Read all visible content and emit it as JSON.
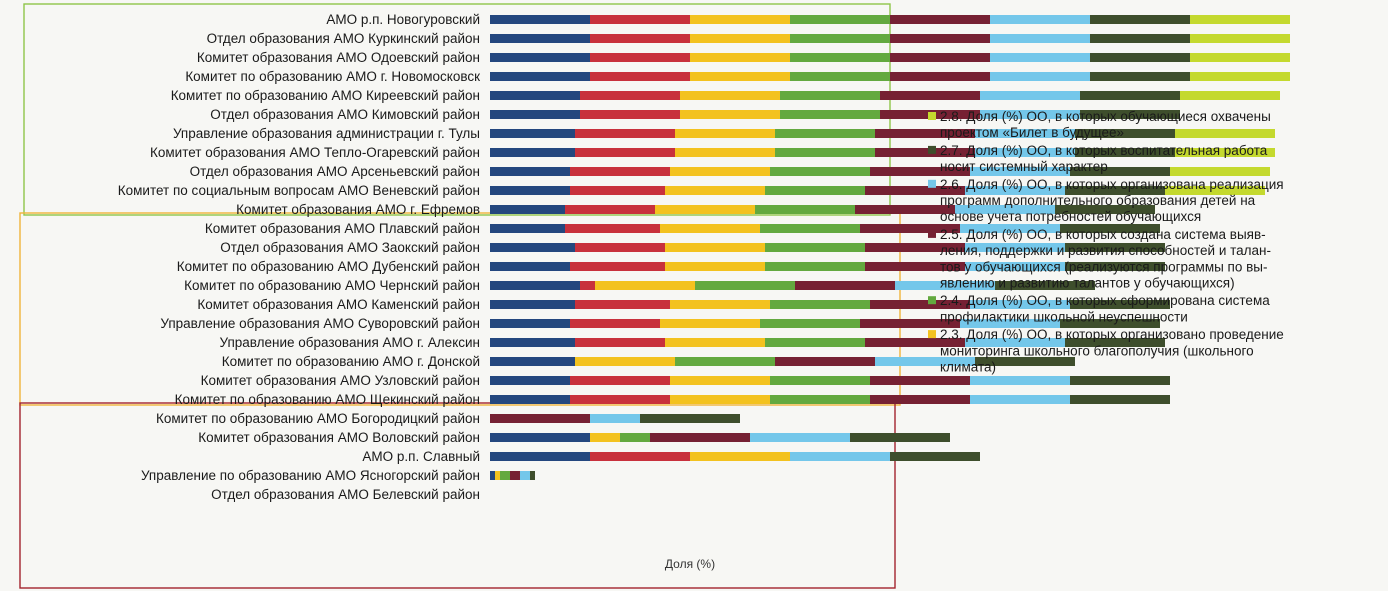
{
  "chart_data": {
    "type": "bar",
    "orientation": "horizontal",
    "stacked": true,
    "xlabel": "Доля (%)",
    "grid": false,
    "legend_position": "right",
    "categories": [
      "АМО р.п. Новогуровский",
      "Отдел образования АМО Куркинский район",
      "Комитет образования АМО Одоевский район",
      "Комитет по образованию АМО г. Новомосковск",
      "Комитет по образованию АМО Киреевский район",
      "Отдел образования АМО Кимовский район",
      "Управление образования администрации г. Тулы",
      "Комитет образования АМО Тепло-Огаревский район",
      "Отдел образования АМО Арсеньевский район",
      "Комитет по социальным вопросам АМО Веневский район",
      "Комитет образования АМО г. Ефремов",
      "Комитет образования АМО Плавский район",
      "Отдел образования АМО Заокский район",
      "Комитет по образованию АМО Дубенский район",
      "Комитет по образованию АМО Чернский район",
      "Комитет образования АМО Каменский район",
      "Управление образования АМО Суворовский район",
      "Управление образования АМО г. Алексин",
      "Комитет по образованию АМО г. Донской",
      "Комитет образования АМО Узловский район",
      "Комитет по образованию АМО Щекинский район",
      "Комитет по образованию АМО Богородицкий район",
      "Комитет образования АМО Воловский район",
      "АМО р.п. Славный",
      "Управление по образованию АМО Ясногорский район",
      "Отдел образования АМО Белевский район"
    ],
    "series": [
      {
        "color": "#24477e",
        "values": [
          100,
          100,
          100,
          100,
          90,
          90,
          85,
          85,
          80,
          80,
          75,
          75,
          85,
          80,
          90,
          85,
          80,
          85,
          85,
          80,
          80,
          0,
          100,
          100,
          5,
          0
        ]
      },
      {
        "color": "#c8313c",
        "values": [
          100,
          100,
          100,
          100,
          100,
          100,
          100,
          100,
          100,
          95,
          90,
          95,
          90,
          95,
          15,
          95,
          90,
          90,
          0,
          100,
          100,
          0,
          0,
          100,
          0,
          0
        ]
      },
      {
        "color": "#f3c21f",
        "values": [
          100,
          100,
          100,
          100,
          100,
          100,
          100,
          100,
          100,
          100,
          100,
          100,
          100,
          100,
          100,
          100,
          100,
          100,
          100,
          100,
          100,
          0,
          30,
          100,
          5,
          0
        ]
      },
      {
        "color": "#63a93f",
        "values": [
          100,
          100,
          100,
          100,
          100,
          100,
          100,
          100,
          100,
          100,
          100,
          100,
          100,
          100,
          100,
          100,
          100,
          100,
          100,
          100,
          100,
          0,
          30,
          0,
          10,
          0
        ]
      },
      {
        "color": "#762133",
        "values": [
          100,
          100,
          100,
          100,
          100,
          100,
          100,
          100,
          100,
          100,
          100,
          100,
          100,
          100,
          100,
          100,
          100,
          100,
          100,
          100,
          100,
          100,
          100,
          0,
          10,
          0
        ]
      },
      {
        "color": "#74c7ea",
        "values": [
          100,
          100,
          100,
          100,
          100,
          100,
          100,
          100,
          100,
          100,
          100,
          100,
          100,
          100,
          100,
          100,
          100,
          100,
          100,
          100,
          100,
          50,
          100,
          100,
          10,
          0
        ]
      },
      {
        "color": "#3e4e2c",
        "values": [
          100,
          100,
          100,
          100,
          100,
          100,
          100,
          100,
          100,
          100,
          100,
          100,
          100,
          100,
          100,
          100,
          100,
          100,
          100,
          100,
          100,
          100,
          100,
          90,
          5,
          0
        ]
      },
      {
        "color": "#c4d92e",
        "values": [
          100,
          100,
          100,
          100,
          100,
          0,
          100,
          100,
          100,
          100,
          0,
          0,
          0,
          0,
          0,
          0,
          0,
          0,
          0,
          0,
          0,
          0,
          0,
          0,
          0,
          0
        ]
      }
    ],
    "legend": [
      {
        "color": "#c4d92e",
        "text": "2.8. Доля (%) ОО, в которых обучающиеся охвачены проектом «Билет в будущее»",
        "lines": [
          "2.8. Доля (%) ОО, в которых обучающиеся охвачены",
          "проектом «Билет в будущее»"
        ]
      },
      {
        "color": "#3e4e2c",
        "text": "2.7. Доля (%) ОО, в которых воспитательная работа носит системный характер",
        "lines": [
          "2.7. Доля (%) ОО, в которых воспитательная работа",
          "носит системный характер"
        ]
      },
      {
        "color": "#74c7ea",
        "text": "2.6. Доля (%) ОО, в которых организована реализация программ дополнительного образования детей на основе учета потребностей обучающихся",
        "lines": [
          "2.6. Доля (%) ОО, в которых организована реализация",
          "программ дополнительного образования детей на",
          "основе учета потребностей обучающихся"
        ]
      },
      {
        "color": "#762133",
        "text": "2.5. Доля (%) ОО, в которых создана система выявления, поддержки и развития способностей и талантов у обучающихся (реализуются программы по выявлению и развитию талантов у обучающихся)",
        "lines": [
          "2.5. Доля (%) ОО, в которых создана система выяв-",
          "ления, поддержки и развития способностей и талан-",
          "тов у обучающихся (реализуются программы по вы-",
          "явлению и развитию талантов у обучающихся)"
        ]
      },
      {
        "color": "#63a93f",
        "text": "2.4. Доля (%) ОО, в которых сформирована система профилактики школьной неуспешности",
        "lines": [
          "2.4. Доля (%) ОО, в которых сформирована система",
          "профилактики школьной неуспешности"
        ]
      },
      {
        "color": "#f3c21f",
        "text": "2.3. Доля (%) ОО, в которых организовано проведение мониторинга школьного благополучия (школьного климата)",
        "lines": [
          "2.3. Доля (%) ОО, в которых организовано проведение",
          "мониторинга школьного благополучия (школьного",
          "климата)"
        ]
      }
    ],
    "groups": [
      {
        "color": "#8fc64a",
        "from": 0,
        "to": 10
      },
      {
        "color": "#f0b43a",
        "from": 11,
        "to": 20
      },
      {
        "color": "#a3242e",
        "from": 21,
        "to": 25
      }
    ]
  }
}
